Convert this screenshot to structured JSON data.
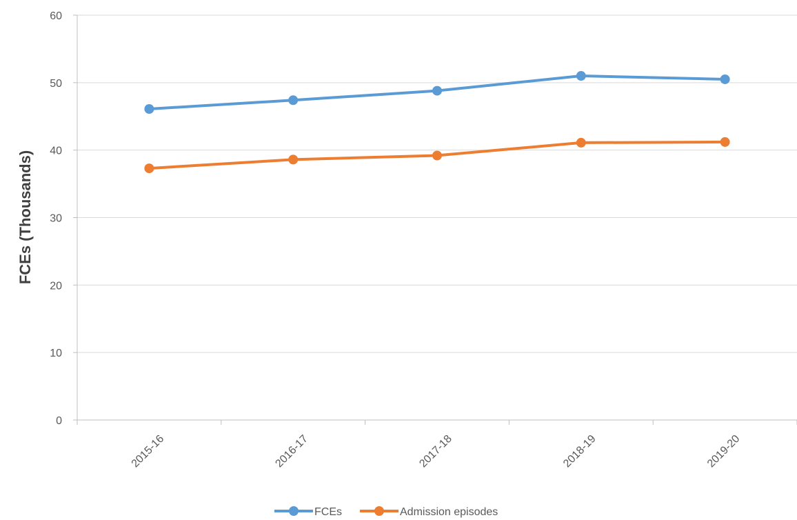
{
  "chart_data": {
    "type": "line",
    "categories": [
      "2015-16",
      "2016-17",
      "2017-18",
      "2018-19",
      "2019-20"
    ],
    "series": [
      {
        "name": "FCEs",
        "color": "#5b9bd5",
        "values": [
          46.1,
          47.4,
          48.8,
          51.0,
          50.5
        ]
      },
      {
        "name": "Admission episodes",
        "color": "#ed7d31",
        "values": [
          37.3,
          38.6,
          39.2,
          41.1,
          41.2
        ]
      }
    ],
    "ylabel": "FCEs (Thousands)",
    "ylim": [
      0,
      60
    ],
    "yticks": [
      0,
      10,
      20,
      30,
      40,
      50,
      60
    ],
    "grid": true,
    "legend_position": "bottom"
  }
}
